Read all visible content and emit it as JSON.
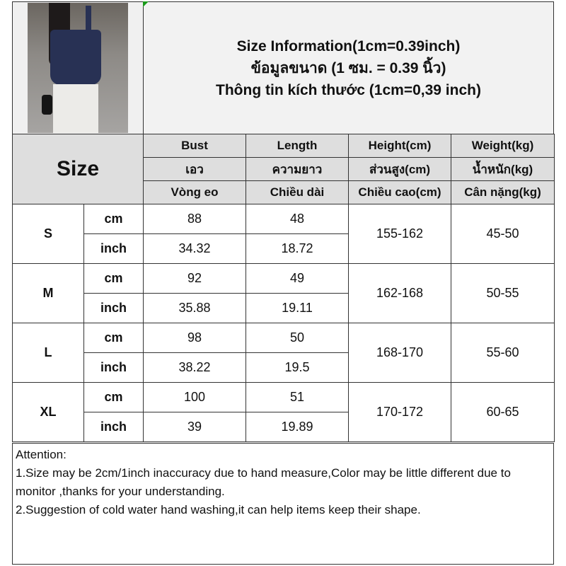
{
  "header": {
    "lines": [
      "Size Information(1cm=0.39inch)",
      "ข้อมูลขนาด (1 ซม. = 0.39 นิ้ว)",
      "Thông tin kích thước (1cm=0,39 inch)"
    ]
  },
  "table": {
    "size_label": "Size",
    "columns": [
      [
        "Bust",
        "เอว",
        "Vòng eo"
      ],
      [
        "Length",
        "ความยาว",
        "Chiều dài"
      ],
      [
        "Height(cm)",
        "ส่วนสูง(cm)",
        "Chiều cao(cm)"
      ],
      [
        "Weight(kg)",
        "น้ำหนัก(kg)",
        "Cân nặng(kg)"
      ]
    ],
    "rows": [
      {
        "size": "S",
        "cm_label": "cm",
        "inch_label": "inch",
        "bust_cm": "88",
        "length_cm": "48",
        "bust_inch": "34.32",
        "length_inch": "18.72",
        "height": "155-162",
        "weight": "45-50"
      },
      {
        "size": "M",
        "cm_label": "cm",
        "inch_label": "inch",
        "bust_cm": "92",
        "length_cm": "49",
        "bust_inch": "35.88",
        "length_inch": "19.11",
        "height": "162-168",
        "weight": "50-55"
      },
      {
        "size": "L",
        "cm_label": "cm",
        "inch_label": "inch",
        "bust_cm": "98",
        "length_cm": "50",
        "bust_inch": "38.22",
        "length_inch": "19.5",
        "height": "168-170",
        "weight": "55-60"
      },
      {
        "size": "XL",
        "cm_label": "cm",
        "inch_label": "inch",
        "bust_cm": "100",
        "length_cm": "51",
        "bust_inch": "39",
        "length_inch": "19.89",
        "height": "170-172",
        "weight": "60-65"
      }
    ]
  },
  "notes": {
    "title": "Attention:",
    "items": [
      "1.Size may be 2cm/1inch inaccuracy due to hand measure,Color may be little different due to monitor ,thanks for your understanding.",
      "2.Suggestion of cold water hand washing,it can help items keep their shape."
    ]
  }
}
